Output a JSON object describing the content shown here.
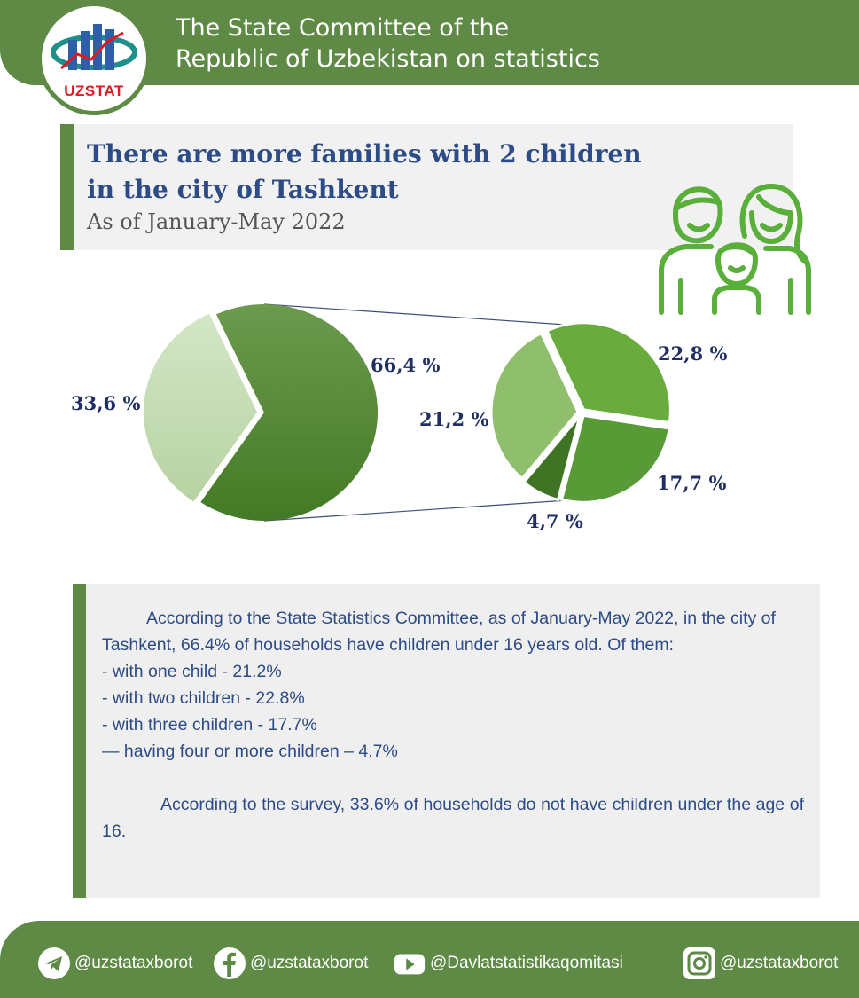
{
  "header": {
    "title_line1": "The State Committee of the",
    "title_line2": "Republic of Uzbekistan on statistics",
    "logo_text": "UZSTAT"
  },
  "headline": {
    "line1": "There are more families with 2 children",
    "line2": "in the city of Tashkent",
    "subtitle": "As of January-May 2022"
  },
  "chart_data": {
    "type": "pie",
    "title": "",
    "main_pie": {
      "slices": [
        {
          "name": "households with children under 16",
          "value": 66.4,
          "label": "66,4 %",
          "color": "#4e8a2e"
        },
        {
          "name": "households without children under 16",
          "value": 33.6,
          "label": "33,6 %",
          "color": "#c7ddb6"
        }
      ]
    },
    "breakdown_pie": {
      "slices": [
        {
          "name": "two children",
          "value": 22.8,
          "label": "22,8 %",
          "color": "#6aab3e"
        },
        {
          "name": "three children",
          "value": 17.7,
          "label": "17,7 %",
          "color": "#579a36"
        },
        {
          "name": "four or more children",
          "value": 4.7,
          "label": "4,7 %",
          "color": "#3f7424"
        },
        {
          "name": "one child",
          "value": 21.2,
          "label": "21,2 %",
          "color": "#8fbf6c"
        }
      ]
    }
  },
  "text": {
    "para1": "According to the State Statistics Committee, as of January-May 2022, in the city of Tashkent, 66.4% of households have children under 16 years old. Of them:",
    "items": [
      "- with one child - 21.2%",
      "- with two children - 22.8%",
      "- with three children - 17.7%",
      "— having four or more children – 4.7%"
    ],
    "para2": "According to the survey, 33.6% of households do not have children under the age of 16."
  },
  "footer": {
    "telegram": "@uzstataxborot",
    "facebook": "@uzstataxborot",
    "youtube": "@Davlatstatistikaqomitasi",
    "instagram": "@uzstataxborot"
  },
  "colors": {
    "brand_green": "#5e8a45",
    "title_blue": "#2d4b86",
    "label_navy": "#1f2f63"
  }
}
